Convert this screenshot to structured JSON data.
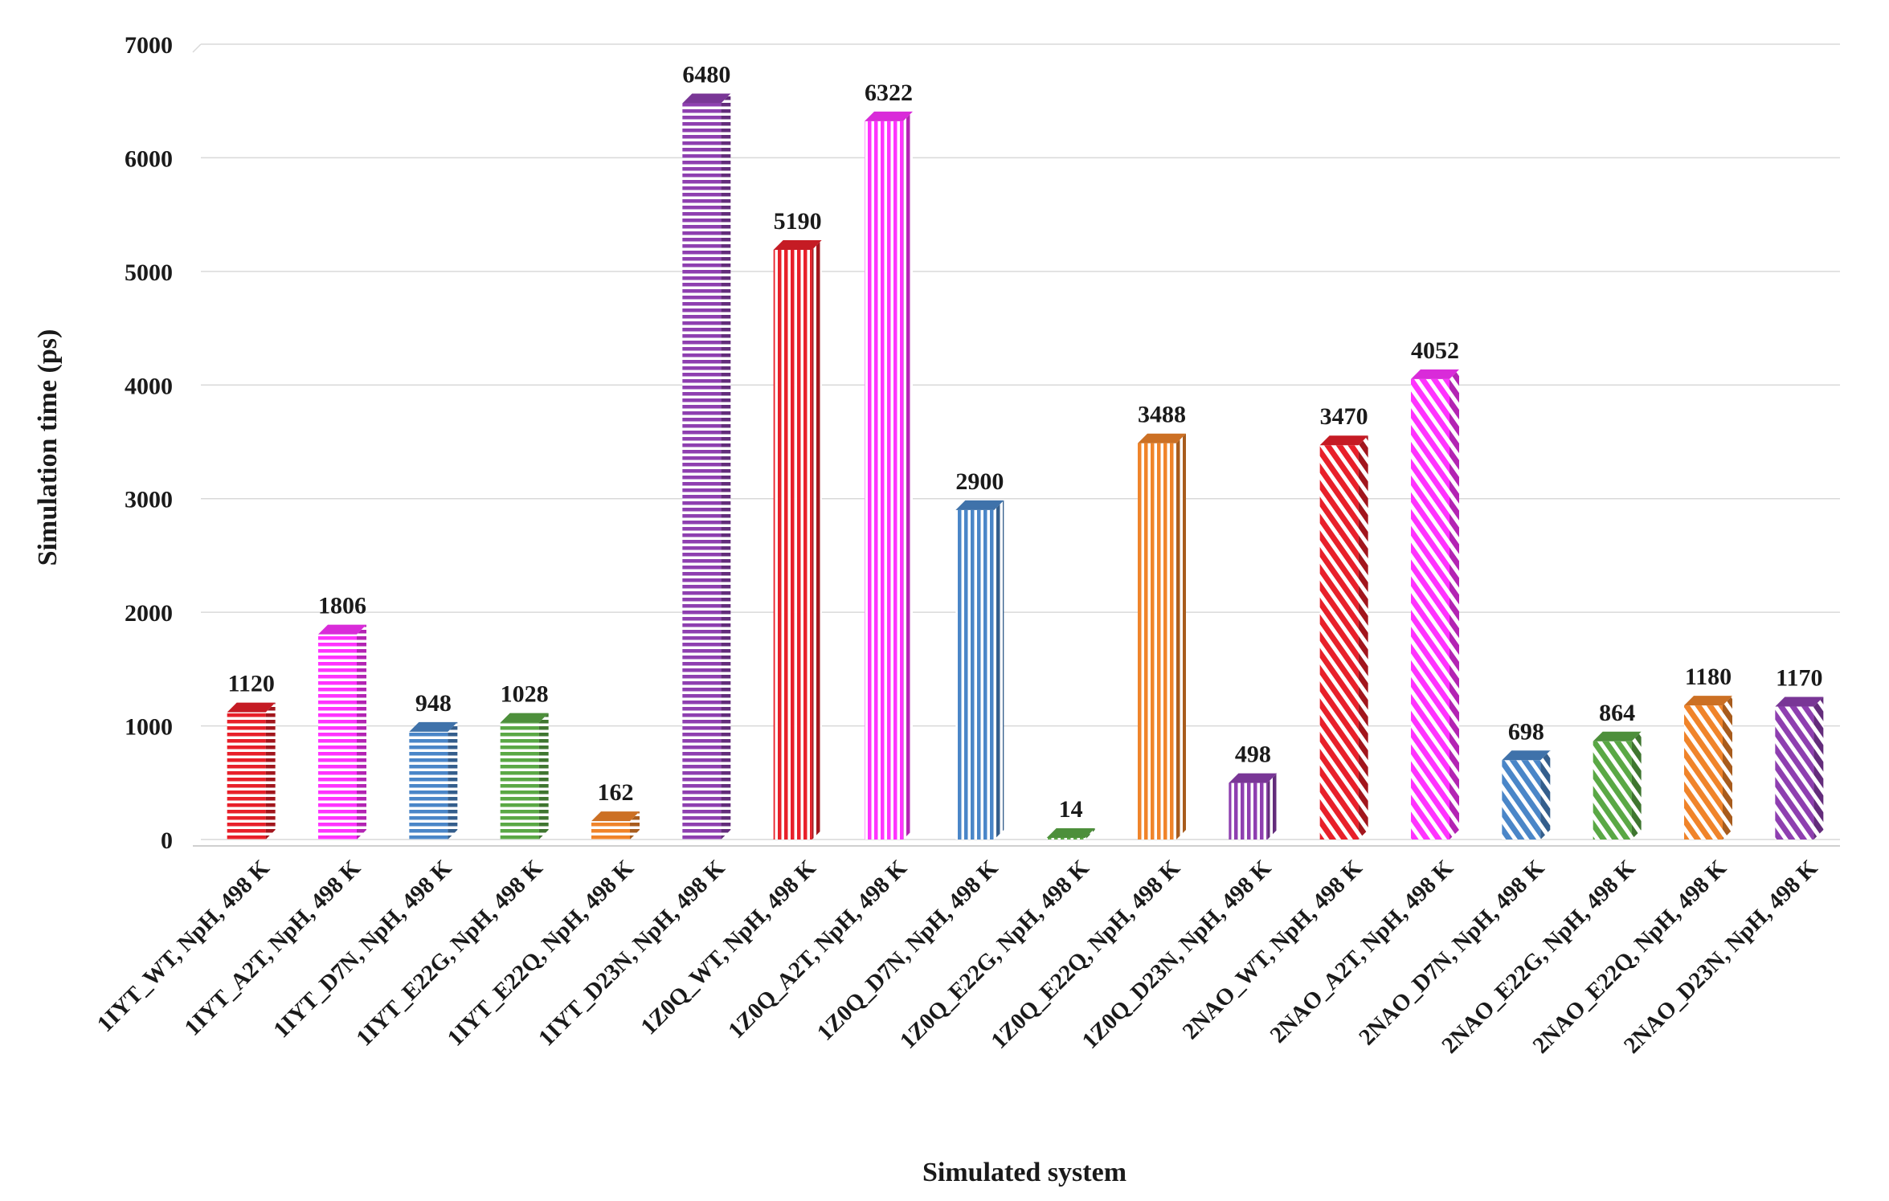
{
  "chart_data": {
    "type": "bar",
    "title": "",
    "xlabel": "Simulated system",
    "ylabel": "Simulation time (ps)",
    "ylim": [
      0,
      7000
    ],
    "yticks": [
      0,
      1000,
      2000,
      3000,
      4000,
      5000,
      6000,
      7000
    ],
    "grid": true,
    "legend": "none",
    "categories": [
      "1IYT_WT, NpH, 498 K",
      "1IYT_A2T, NpH, 498 K",
      "1IYT_D7N, NpH, 498 K",
      "1IYT_E22G, NpH, 498 K",
      "1IYT_E22Q, NpH, 498 K",
      "1IYT_D23N, NpH, 498 K",
      "1Z0Q_WT, NpH, 498 K",
      "1Z0Q_A2T, NpH, 498 K",
      "1Z0Q_D7N, NpH, 498 K",
      "1Z0Q_E22G, NpH, 498 K",
      "1Z0Q_E22Q, NpH, 498 K",
      "1Z0Q_D23N, NpH, 498 K",
      "2NAO_WT, NpH, 498 K",
      "2NAO_A2T, NpH, 498 K",
      "2NAO_D7N, NpH, 498 K",
      "2NAO_E22G, NpH, 498 K",
      "2NAO_E22Q, NpH, 498 K",
      "2NAO_D23N, NpH, 498 K"
    ],
    "values": [
      1120,
      1806,
      948,
      1028,
      162,
      6480,
      5190,
      6322,
      2900,
      14,
      3488,
      498,
      3470,
      4052,
      698,
      864,
      1180,
      1170
    ],
    "data_labels": [
      "1120",
      "1806",
      "948",
      "1028",
      "162",
      "6480",
      "5190",
      "6322",
      "2900",
      "14",
      "3488",
      "498",
      "3470",
      "4052",
      "698",
      "864",
      "1180",
      "1170"
    ],
    "ytick_labels": [
      "0",
      "1000",
      "2000",
      "3000",
      "4000",
      "5000",
      "6000",
      "7000"
    ],
    "colors": [
      "#e8202a",
      "#ff33ff",
      "#4a86c8",
      "#5aa845",
      "#f0842a",
      "#8e3fb0",
      "#e8202a",
      "#ff33ff",
      "#4a86c8",
      "#5aa845",
      "#f0842a",
      "#8e3fb0",
      "#e8202a",
      "#ff33ff",
      "#4a86c8",
      "#5aa845",
      "#f0842a",
      "#8e3fb0"
    ],
    "patterns": [
      "horizontal",
      "horizontal",
      "horizontal",
      "horizontal",
      "horizontal",
      "horizontal",
      "vertical",
      "vertical",
      "vertical",
      "vertical",
      "vertical",
      "vertical",
      "diagonal",
      "diagonal",
      "diagonal",
      "diagonal",
      "diagonal",
      "diagonal"
    ]
  }
}
